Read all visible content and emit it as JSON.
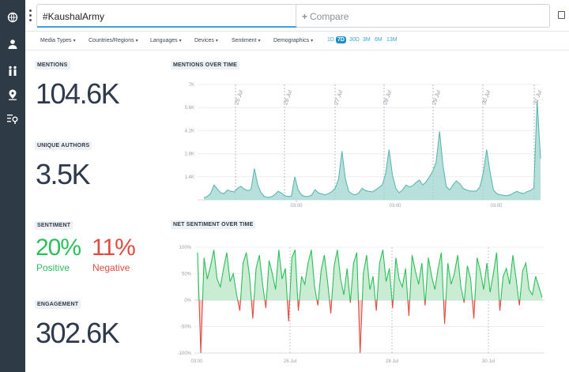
{
  "query": {
    "value": "#KaushalArmy"
  },
  "compare": {
    "placeholder": "Compare",
    "plus": "+"
  },
  "filters": [
    {
      "label": "Media Types"
    },
    {
      "label": "Countries/Regions"
    },
    {
      "label": "Languages"
    },
    {
      "label": "Devices"
    },
    {
      "label": "Sentiment"
    },
    {
      "label": "Demographics"
    }
  ],
  "periods": [
    {
      "label": "1D",
      "active": false
    },
    {
      "label": "7D",
      "active": true
    },
    {
      "label": "30D",
      "active": false
    },
    {
      "label": "3M",
      "active": false
    },
    {
      "label": "6M",
      "active": false
    },
    {
      "label": "13M",
      "active": false
    }
  ],
  "metrics": {
    "mentions": {
      "label": "MENTIONS",
      "value": "104.6K"
    },
    "unique_authors": {
      "label": "UNIQUE AUTHORS",
      "value": "3.5K"
    },
    "sentiment": {
      "label": "SENTIMENT",
      "positive_value": "20%",
      "positive_label": "Positive",
      "negative_value": "11%",
      "negative_label": "Negative"
    },
    "engagement": {
      "label": "ENGAGEMENT",
      "value": "302.6K"
    }
  },
  "colors": {
    "sidebar": "#2e3b47",
    "accent": "#1c8fc7",
    "mentions_fill": "#9fd6d0",
    "mentions_line": "#5cb8ae",
    "positive": "#2cbf5b",
    "negative": "#e14b40"
  },
  "chart_data": [
    {
      "type": "area",
      "title": "MENTIONS OVER TIME",
      "y_ticks": [
        "7K",
        "5.6K",
        "4.2K",
        "2.8K",
        "1.4K"
      ],
      "ylim": [
        0,
        7000
      ],
      "x_ticks": [
        "03:00",
        "03:00",
        "03:00",
        "03:00"
      ],
      "day_markers": [
        "25 Jul",
        "26 Jul",
        "27 Jul",
        "28 Jul",
        "29 Jul",
        "30 Jul",
        "31 Jul"
      ],
      "values": [
        120,
        200,
        380,
        900,
        650,
        420,
        380,
        600,
        520,
        480,
        700,
        820,
        650,
        560,
        620,
        1900,
        900,
        420,
        200,
        150,
        180,
        300,
        520,
        420,
        260,
        200,
        230,
        1400,
        600,
        300,
        200,
        210,
        280,
        620,
        420,
        360,
        300,
        380,
        500,
        700,
        1250,
        2950,
        1300,
        520,
        360,
        300,
        420,
        700,
        560,
        520,
        480,
        600,
        750,
        900,
        1600,
        3050,
        1500,
        700,
        420,
        600,
        900,
        780,
        850,
        1050,
        1200,
        900,
        1100,
        1400,
        1750,
        2300,
        4150,
        2100,
        800,
        600,
        900,
        1150,
        980,
        700,
        600,
        540,
        520,
        540,
        800,
        1650,
        3050,
        1700,
        600,
        380,
        300,
        280,
        250,
        300,
        420,
        520,
        420,
        380,
        500,
        560,
        720,
        6000,
        2500
      ]
    },
    {
      "type": "area",
      "title": "NET SENTIMENT OVER TIME",
      "y_ticks": [
        "100%",
        "50%",
        "0%",
        "-50%",
        "-100%"
      ],
      "ylim": [
        -100,
        100
      ],
      "x_ticks": [
        "03:00",
        "26 Jul",
        "28 Jul",
        "30 Jul"
      ],
      "values": [
        90,
        -100,
        80,
        40,
        65,
        95,
        40,
        25,
        60,
        90,
        35,
        50,
        10,
        -20,
        70,
        90,
        45,
        -35,
        60,
        85,
        30,
        -15,
        75,
        50,
        20,
        95,
        40,
        60,
        -40,
        80,
        95,
        -20,
        45,
        30,
        70,
        95,
        25,
        -10,
        55,
        85,
        35,
        -25,
        65,
        95,
        40,
        10,
        60,
        -5,
        70,
        90,
        -100,
        50,
        85,
        20,
        45,
        -20,
        70,
        95,
        35,
        60,
        -15,
        80,
        40,
        25,
        60,
        -30,
        85,
        55,
        30,
        70,
        -10,
        80,
        45,
        20,
        60,
        90,
        -45,
        70,
        30,
        50,
        85,
        25,
        -5,
        65,
        40,
        -35,
        80,
        55,
        20,
        70,
        15,
        50,
        90,
        -20,
        45,
        60,
        30,
        85,
        40,
        -10,
        55,
        70,
        20,
        10,
        45,
        25,
        5
      ]
    }
  ]
}
